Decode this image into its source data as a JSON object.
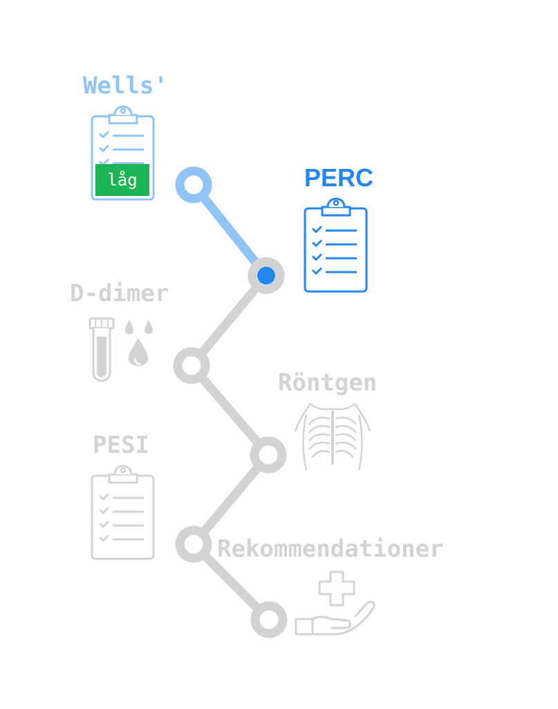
{
  "colors": {
    "done": "#90c4f7",
    "current": "#2486f0",
    "pending": "#d3d3d3",
    "result_badge": "#1bb555",
    "result_text": "#ffffff"
  },
  "steps": [
    {
      "label": "Wells'",
      "state": "done",
      "icon": "clipboard-checklist-icon",
      "result": "låg"
    },
    {
      "label": "PERC",
      "state": "current",
      "icon": "clipboard-checklist-icon"
    },
    {
      "label": "D-dimer",
      "state": "pending",
      "icon": "test-tube-blood-drops-icon"
    },
    {
      "label": "Röntgen",
      "state": "pending",
      "icon": "chest-xray-icon"
    },
    {
      "label": "PESI",
      "state": "pending",
      "icon": "clipboard-checklist-icon"
    },
    {
      "label": "Rekommendationer",
      "state": "pending",
      "icon": "hand-medical-cross-icon"
    }
  ]
}
